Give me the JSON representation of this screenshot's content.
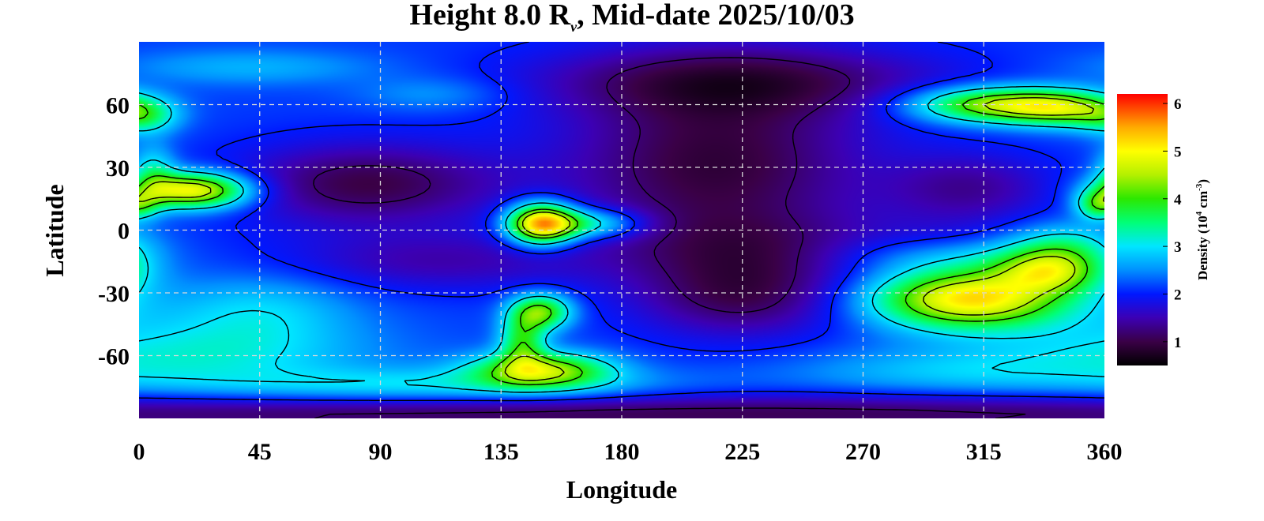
{
  "chart_data": {
    "type": "heatmap",
    "title": {
      "prefix": "Height 8.0 R",
      "sub": "ν",
      "suffix": ", Mid-date 2025/10/03"
    },
    "xlabel": "Longitude",
    "ylabel": "Latitude",
    "xlim": [
      0,
      360
    ],
    "ylim": [
      -90,
      90
    ],
    "xticks": [
      0,
      45,
      90,
      135,
      180,
      225,
      270,
      315,
      360
    ],
    "yticks": [
      60,
      30,
      0,
      -30,
      -60
    ],
    "grid": true,
    "colorbar": {
      "label_prefix": "Density (10",
      "label_exp1": "4",
      "label_mid": " cm",
      "label_exp2": "-3",
      "label_suffix": ")",
      "range": [
        0.5,
        6.2
      ],
      "ticks": [
        6,
        5,
        4,
        3,
        2,
        1
      ],
      "colormap": [
        {
          "v": 0.5,
          "color": "#000000"
        },
        {
          "v": 1.0,
          "color": "#3a0046"
        },
        {
          "v": 1.5,
          "color": "#3c00b4"
        },
        {
          "v": 2.0,
          "color": "#0018ff"
        },
        {
          "v": 2.5,
          "color": "#0090ff"
        },
        {
          "v": 3.0,
          "color": "#00e6ff"
        },
        {
          "v": 3.5,
          "color": "#00ff78"
        },
        {
          "v": 4.0,
          "color": "#2ce800"
        },
        {
          "v": 4.5,
          "color": "#b4f000"
        },
        {
          "v": 5.0,
          "color": "#ffff00"
        },
        {
          "v": 5.5,
          "color": "#ffaa00"
        },
        {
          "v": 6.2,
          "color": "#ff0000"
        }
      ]
    },
    "contour_levels": [
      1.2,
      2.0,
      3.0,
      4.0,
      4.5
    ],
    "background_density": 2.15,
    "features": [
      {
        "lon": 215,
        "lat": 32,
        "dlon": 40,
        "dlat": 30,
        "amp": -1.25
      },
      {
        "lon": 225,
        "lat": 72,
        "dlon": 55,
        "dlat": 12,
        "amp": -0.95
      },
      {
        "lon": 85,
        "lat": 22,
        "dlon": 35,
        "dlat": 14,
        "amp": -1.15
      },
      {
        "lon": 225,
        "lat": -32,
        "dlon": 28,
        "dlat": 14,
        "amp": -1.0
      },
      {
        "lon": 310,
        "lat": 20,
        "dlon": 22,
        "dlat": 12,
        "amp": -0.75
      },
      {
        "lon": 230,
        "lat": -8,
        "dlon": 40,
        "dlat": 12,
        "amp": -0.55
      },
      {
        "lon": 110,
        "lat": -15,
        "dlon": 40,
        "dlat": 10,
        "amp": -0.65
      },
      {
        "lon": 180,
        "lat": -88,
        "dlon": 360,
        "dlat": 7,
        "amp": -1.1
      },
      {
        "lon": 300,
        "lat": -8,
        "dlon": 20,
        "dlat": 8,
        "amp": -0.35
      },
      {
        "lon": 20,
        "lat": 19,
        "dlon": 15,
        "dlat": 6,
        "amp": 2.95
      },
      {
        "lon": 5,
        "lat": 28,
        "dlon": 6,
        "dlat": 9,
        "amp": 1.0
      },
      {
        "lon": 2,
        "lat": 54,
        "dlon": 9,
        "dlat": 6,
        "amp": 1.05
      },
      {
        "lon": 150,
        "lat": 3,
        "dlon": 9,
        "dlat": 7,
        "amp": 3.35
      },
      {
        "lon": 168,
        "lat": 3,
        "dlon": 14,
        "dlat": 5,
        "amp": 1.4
      },
      {
        "lon": 150,
        "lat": -39,
        "dlon": 8,
        "dlat": 6,
        "amp": 2.05
      },
      {
        "lon": 150,
        "lat": -67,
        "dlon": 18,
        "dlat": 6,
        "amp": 2.3
      },
      {
        "lon": 143,
        "lat": -53,
        "dlon": 6,
        "dlat": 9,
        "amp": 1.6
      },
      {
        "lon": 110,
        "lat": -75,
        "dlon": 60,
        "dlat": 6,
        "amp": 0.9
      },
      {
        "lon": 20,
        "lat": -60,
        "dlon": 45,
        "dlat": 12,
        "amp": 0.9
      },
      {
        "lon": 45,
        "lat": -38,
        "dlon": 25,
        "dlat": 12,
        "amp": 0.7
      },
      {
        "lon": 310,
        "lat": -33,
        "dlon": 26,
        "dlat": 10,
        "amp": 3.05
      },
      {
        "lon": 340,
        "lat": -20,
        "dlon": 14,
        "dlat": 7,
        "amp": 1.8
      },
      {
        "lon": 305,
        "lat": -12,
        "dlon": 30,
        "dlat": 7,
        "amp": 0.8
      },
      {
        "lon": 320,
        "lat": 60,
        "dlon": 22,
        "dlat": 6,
        "amp": 2.45
      },
      {
        "lon": 345,
        "lat": 58,
        "dlon": 14,
        "dlat": 6,
        "amp": 1.5
      },
      {
        "lon": 358,
        "lat": 12,
        "dlon": 6,
        "dlat": 5,
        "amp": 1.6
      },
      {
        "lon": 345,
        "lat": -8,
        "dlon": 14,
        "dlat": 8,
        "amp": 1.0
      },
      {
        "lon": 40,
        "lat": 78,
        "dlon": 35,
        "dlat": 6,
        "amp": 0.55
      },
      {
        "lon": 110,
        "lat": 65,
        "dlon": 20,
        "dlat": 6,
        "amp": 0.45
      },
      {
        "lon": 300,
        "lat": -68,
        "dlon": 40,
        "dlat": 8,
        "amp": 0.6
      }
    ]
  }
}
